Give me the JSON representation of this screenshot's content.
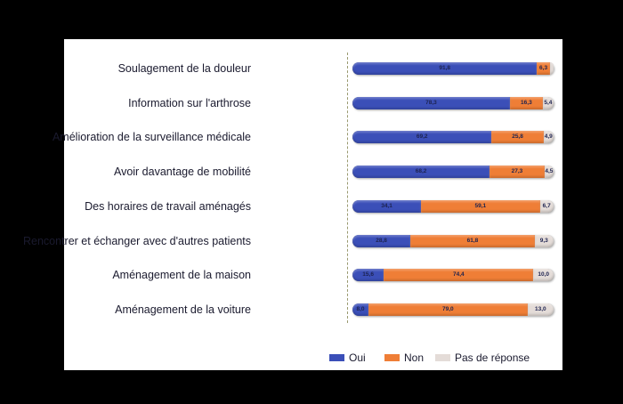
{
  "chart_data": {
    "type": "bar",
    "orientation": "horizontal",
    "stacked": true,
    "categories": [
      "Soulagement de la douleur",
      "Information sur l'arthrose",
      "Amélioration de la surveillance médicale",
      "Avoir davantage de mobilité",
      "Des horaires de travail aménagés",
      "Rencontrer et échanger avec d'autres patients",
      "Aménagement de la maison",
      "Aménagement de la voiture"
    ],
    "series": [
      {
        "name": "Oui",
        "color": "#3b4fb8",
        "values": [
          91.8,
          78.3,
          69.2,
          68.2,
          34.1,
          28.8,
          15.6,
          8.0
        ],
        "labels": [
          "91,8",
          "78,3",
          "69,2",
          "68,2",
          "34,1",
          "28,8",
          "15,6",
          "8,0"
        ]
      },
      {
        "name": "Non",
        "color": "#ef7e36",
        "values": [
          6.3,
          16.3,
          25.8,
          27.3,
          59.1,
          61.8,
          74.4,
          79.0
        ],
        "labels": [
          "6,3",
          "16,3",
          "25,8",
          "27,3",
          "59,1",
          "61,8",
          "74,4",
          "79,0"
        ]
      },
      {
        "name": "Pas de réponse",
        "color": "#e4dcd8",
        "values": [
          1.9,
          5.4,
          4.9,
          4.5,
          6.7,
          9.3,
          10.0,
          13.0
        ],
        "labels": [
          "",
          "5,4",
          "4,9",
          "4,5",
          "6,7",
          "9,3",
          "10,0",
          "13,0"
        ]
      }
    ],
    "xlim": [
      0,
      100
    ],
    "legend_position": "bottom-right",
    "grid": false
  }
}
